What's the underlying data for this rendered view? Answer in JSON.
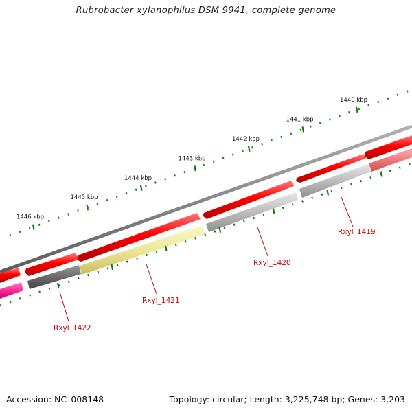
{
  "title": "Rubrobacter xylanophilus DSM 9941, complete genome",
  "footer": {
    "accession": "Accession: NC_008148",
    "summary": "Topology: circular; Length: 3,225,748 bp; Genes: 3,203"
  },
  "ruler": {
    "ticks": [
      {
        "label": "1440 kbp",
        "kbp": 1440
      },
      {
        "label": "1441 kbp",
        "kbp": 1441
      },
      {
        "label": "1442 kbp",
        "kbp": 1442
      },
      {
        "label": "1443 kbp",
        "kbp": 1443
      },
      {
        "label": "1444 kbp",
        "kbp": 1444
      },
      {
        "label": "1445 kbp",
        "kbp": 1445
      },
      {
        "label": "1446 kbp",
        "kbp": 1446
      }
    ]
  },
  "gene_labels": [
    {
      "text": "Rxyl_1419"
    },
    {
      "text": "Rxyl_1420"
    },
    {
      "text": "Rxyl_1421"
    },
    {
      "text": "Rxyl_1422"
    }
  ],
  "colors": {
    "backbone": "#8a8a8a",
    "cds": "#ff0000",
    "ticks": "#1a7a1a",
    "label": "#cc0000",
    "gene_1419": "#b8b8b8",
    "gene_1420": "#bcbcbc",
    "gene_1421": "#eee89a",
    "gene_1422": "#6a6a6a",
    "gene_pink": "#ff2a9a",
    "gene_light_red": "#f07878"
  }
}
